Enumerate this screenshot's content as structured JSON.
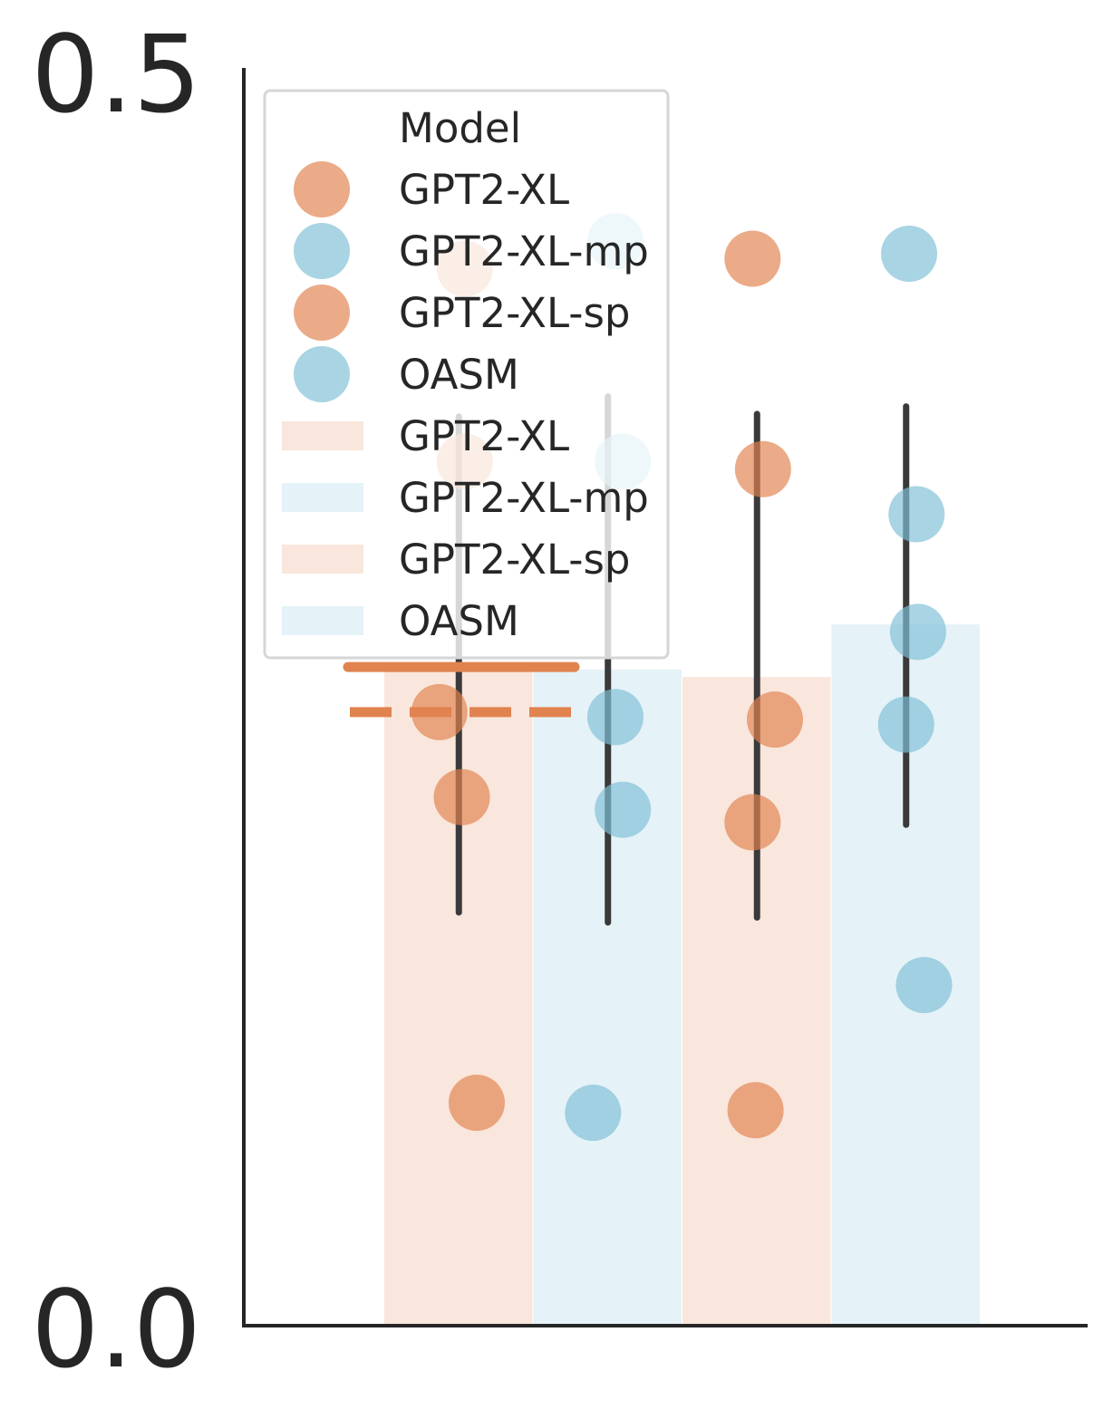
{
  "chart_data": {
    "type": "bar",
    "ylim": [
      0.0,
      0.5
    ],
    "y_ticks": [
      "0.0",
      "0.5"
    ],
    "grid": false,
    "colors": {
      "orange": "#E1834F",
      "blue": "#7FBFD6",
      "axis": "#262626",
      "error": "#3a3a3a"
    },
    "bars": [
      {
        "model": "GPT2-XL",
        "color": "orange",
        "value": 0.263,
        "err_low": 0.165,
        "err_high": 0.363
      },
      {
        "model": "GPT2-XL-mp",
        "color": "blue",
        "value": 0.262,
        "err_low": 0.161,
        "err_high": 0.371
      },
      {
        "model": "GPT2-XL-sp",
        "color": "orange",
        "value": 0.259,
        "err_low": 0.163,
        "err_high": 0.364
      },
      {
        "model": "OASM",
        "color": "blue",
        "value": 0.28,
        "err_low": 0.2,
        "err_high": 0.367
      }
    ],
    "points": [
      {
        "bar": 0,
        "dx": 0.04,
        "y": 0.422
      },
      {
        "bar": 0,
        "dx": 0.04,
        "y": 0.345
      },
      {
        "bar": 0,
        "dx": -0.13,
        "y": 0.245
      },
      {
        "bar": 0,
        "dx": 0.02,
        "y": 0.211
      },
      {
        "bar": 0,
        "dx": 0.12,
        "y": 0.089
      },
      {
        "bar": 1,
        "dx": 0.05,
        "y": 0.433
      },
      {
        "bar": 1,
        "dx": 0.1,
        "y": 0.345
      },
      {
        "bar": 1,
        "dx": 0.05,
        "y": 0.243
      },
      {
        "bar": 1,
        "dx": 0.1,
        "y": 0.206
      },
      {
        "bar": 1,
        "dx": -0.1,
        "y": 0.085
      },
      {
        "bar": 2,
        "dx": -0.03,
        "y": 0.426
      },
      {
        "bar": 2,
        "dx": 0.04,
        "y": 0.342
      },
      {
        "bar": 2,
        "dx": 0.12,
        "y": 0.242
      },
      {
        "bar": 2,
        "dx": -0.03,
        "y": 0.201
      },
      {
        "bar": 2,
        "dx": -0.01,
        "y": 0.086
      },
      {
        "bar": 3,
        "dx": 0.02,
        "y": 0.428
      },
      {
        "bar": 3,
        "dx": 0.07,
        "y": 0.324
      },
      {
        "bar": 3,
        "dx": 0.08,
        "y": 0.277
      },
      {
        "bar": 3,
        "dx": 0.0,
        "y": 0.24
      },
      {
        "bar": 3,
        "dx": 0.12,
        "y": 0.136
      }
    ],
    "reference_lines": [
      {
        "style": "solid",
        "color": "orange",
        "y": 0.263
      },
      {
        "style": "dashed",
        "color": "orange",
        "y": 0.245
      }
    ],
    "legend": {
      "title": "Model",
      "placement": "upper-left",
      "entries": [
        {
          "kind": "marker",
          "label": "GPT2-XL",
          "color": "orange"
        },
        {
          "kind": "marker",
          "label": "GPT2-XL-mp",
          "color": "blue"
        },
        {
          "kind": "marker",
          "label": "GPT2-XL-sp",
          "color": "orange"
        },
        {
          "kind": "marker",
          "label": "OASM",
          "color": "blue"
        },
        {
          "kind": "patch",
          "label": "GPT2-XL",
          "color": "orange"
        },
        {
          "kind": "patch",
          "label": "GPT2-XL-mp",
          "color": "blue"
        },
        {
          "kind": "patch",
          "label": "GPT2-XL-sp",
          "color": "orange"
        },
        {
          "kind": "patch",
          "label": "OASM",
          "color": "blue"
        }
      ]
    }
  }
}
